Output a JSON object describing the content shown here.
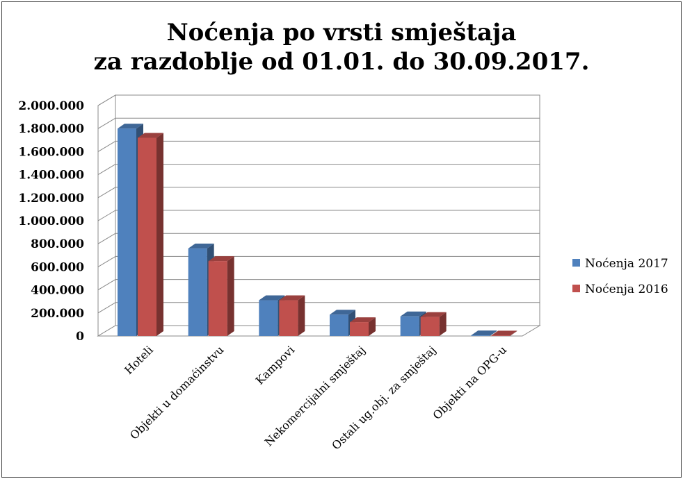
{
  "chart_data": {
    "type": "bar",
    "title_lines": [
      "Noćenja po vrsti smještaja",
      "za razdoblje od 01.01. do 30.09.2017."
    ],
    "categories": [
      "Hoteli",
      "Objekti u domaćinstvu",
      "Kampovi",
      "Nekomercijalni smještaj",
      "Ostali ug.obj. za smještaj",
      "Objekti na OPG-u"
    ],
    "series": [
      {
        "name": "Noćenja 2017",
        "color": "#4f81bd",
        "values": [
          1800000,
          760000,
          310000,
          185000,
          170000,
          5000
        ]
      },
      {
        "name": "Noćenja 2016",
        "color": "#c0504d",
        "values": [
          1720000,
          650000,
          310000,
          120000,
          165000,
          4000
        ]
      }
    ],
    "y_ticks": [
      "0",
      "200.000",
      "400.000",
      "600.000",
      "800.000",
      "1.000.000",
      "1.200.000",
      "1.400.000",
      "1.600.000",
      "1.800.000",
      "2.000.000"
    ],
    "ylim": [
      0,
      2000000
    ],
    "grid": true,
    "style": "3d-clustered-column",
    "legend_position": "right"
  }
}
